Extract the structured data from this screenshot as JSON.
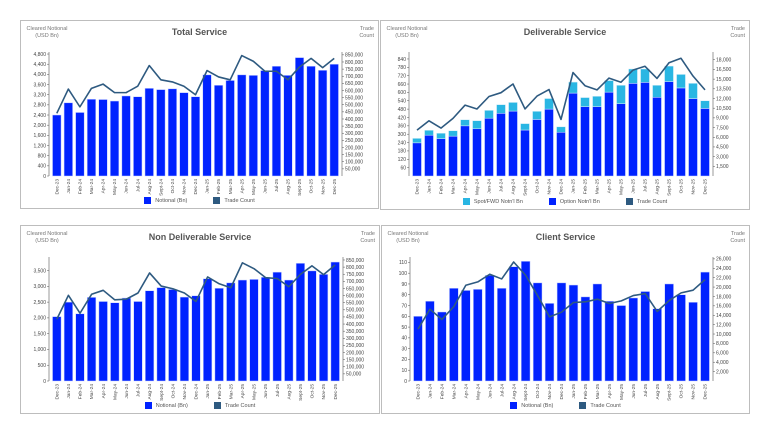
{
  "months": [
    "Dec-23",
    "Jan-24",
    "Feb-24",
    "Mar-24",
    "Apr-24",
    "May-24",
    "Jun-24",
    "Jul-24",
    "Aug-24",
    "Sept-24",
    "Oct-24",
    "Nov-24",
    "Dec-24",
    "Jan-25",
    "Feb-25",
    "Mar-25",
    "Apr-25",
    "May-25",
    "Jun-25",
    "Jul-25",
    "Aug-25",
    "Sept-25",
    "Oct-25",
    "Nov-25",
    "Dec-25"
  ],
  "colors": {
    "bar": "#0022ff",
    "spot": "#29b6e3",
    "line": "#2e5a80"
  },
  "chart_data": [
    {
      "type": "bar+line",
      "title": "Total Service",
      "ylabel": "Cleared Notional (USD Bn)",
      "y2label": "Trade Count",
      "ylim": [
        0,
        4880
      ],
      "y2lim": [
        0,
        870000
      ],
      "yticks": [
        "0",
        "400",
        "800",
        "1,200",
        "1,600",
        "2,000",
        "2,400",
        "2,800",
        "3,200",
        "3,600",
        "4,000",
        "4,400",
        "4,800"
      ],
      "yticks_values": [
        0,
        400,
        800,
        1200,
        1600,
        2000,
        2400,
        2800,
        3200,
        3600,
        4000,
        4400,
        4800
      ],
      "y2ticks_values": [
        50000,
        100000,
        150000,
        200000,
        250000,
        300000,
        350000,
        400000,
        450000,
        500000,
        550000,
        600000,
        650000,
        700000,
        750000,
        800000,
        850000
      ],
      "y2ticks": [
        "50,000",
        "100,000",
        "150,000",
        "200,000",
        "250,000",
        "300,000",
        "350,000",
        "400,000",
        "450,000",
        "500,000",
        "550,000",
        "600,000",
        "650,000",
        "700,000",
        "750,000",
        "800,000",
        "850,000"
      ],
      "series": [
        {
          "name": "Notional (Bn)",
          "kind": "bar",
          "values": [
            2400,
            2880,
            2500,
            3020,
            3010,
            2950,
            3150,
            3120,
            3450,
            3400,
            3430,
            3280,
            3120,
            3980,
            3570,
            3760,
            3980,
            3960,
            4150,
            4320,
            3960,
            4660,
            4320,
            4160,
            4400
          ]
        },
        {
          "name": "Trade Count",
          "kind": "line",
          "values": [
            440000,
            610000,
            485000,
            615000,
            645000,
            585000,
            585000,
            630000,
            775000,
            675000,
            660000,
            630000,
            570000,
            740000,
            695000,
            675000,
            845000,
            805000,
            735000,
            735000,
            675000,
            765000,
            825000,
            760000,
            825000
          ]
        }
      ]
    },
    {
      "type": "stacked-bar+line",
      "title": "Deliverable Service",
      "ylabel": "Cleared Notional (USD Bn)",
      "y2label": "Trade Count",
      "ylim": [
        0,
        890
      ],
      "y2lim": [
        0,
        19200
      ],
      "yticks": [
        "60",
        "120",
        "180",
        "240",
        "300",
        "360",
        "420",
        "480",
        "540",
        "600",
        "660",
        "720",
        "780",
        "840"
      ],
      "yticks_values": [
        60,
        120,
        180,
        240,
        300,
        360,
        420,
        480,
        540,
        600,
        660,
        720,
        780,
        840
      ],
      "y2ticks": [
        "1,500",
        "3,000",
        "4,500",
        "6,000",
        "7,500",
        "9,000",
        "10,500",
        "12,000",
        "13,500",
        "15,000",
        "16,500",
        "18,000"
      ],
      "y2ticks_values": [
        1500,
        3000,
        4500,
        6000,
        7500,
        9000,
        10500,
        12000,
        13500,
        15000,
        16500,
        18000
      ],
      "series": [
        {
          "name": "Spot/FWD Notn'l Bn",
          "kind": "stack",
          "values": [
            32,
            35,
            39,
            39,
            44,
            58,
            56,
            62,
            62,
            46,
            58,
            76,
            39,
            79,
            65,
            74,
            83,
            132,
            103,
            96,
            86,
            111,
            97,
            109,
            55
          ]
        },
        {
          "name": "Option Notn'l Bn",
          "kind": "bar",
          "values": [
            238,
            293,
            268,
            286,
            360,
            339,
            415,
            450,
            466,
            330,
            406,
            480,
            314,
            595,
            498,
            498,
            602,
            519,
            665,
            672,
            565,
            678,
            632,
            556,
            485
          ]
        },
        {
          "name": "Trade Count",
          "kind": "line",
          "values": [
            7100,
            8550,
            7420,
            8920,
            10970,
            10380,
            12310,
            12900,
            14250,
            10380,
            12370,
            13390,
            8760,
            16020,
            13980,
            13330,
            15160,
            14520,
            16400,
            16990,
            15110,
            17530,
            18230,
            15480,
            13330
          ]
        }
      ]
    },
    {
      "type": "bar+line",
      "title": "Non Deliverable Service",
      "ylabel": "Cleared Notional (USD Bn)",
      "y2label": "Trade Count",
      "ylim": [
        0,
        3930
      ],
      "y2lim": [
        0,
        871000
      ],
      "yticks": [
        "0",
        "500",
        "1,000",
        "1,500",
        "2,000",
        "2,500",
        "3,000",
        "3,500"
      ],
      "yticks_values": [
        0,
        500,
        1000,
        1500,
        2000,
        2500,
        3000,
        3500
      ],
      "y2ticks_values": [
        50000,
        100000,
        150000,
        200000,
        250000,
        300000,
        350000,
        400000,
        450000,
        500000,
        550000,
        600000,
        650000,
        700000,
        750000,
        800000,
        850000
      ],
      "y2ticks": [
        "50,000",
        "100,000",
        "150,000",
        "200,000",
        "250,000",
        "300,000",
        "350,000",
        "400,000",
        "450,000",
        "500,000",
        "550,000",
        "600,000",
        "650,000",
        "700,000",
        "750,000",
        "800,000",
        "850,000"
      ],
      "series": [
        {
          "name": "Notional (Bn)",
          "kind": "bar",
          "values": [
            2040,
            2500,
            2130,
            2650,
            2520,
            2480,
            2630,
            2520,
            2860,
            2960,
            2900,
            2660,
            2700,
            3240,
            2940,
            3110,
            3200,
            3220,
            3290,
            3450,
            3200,
            3730,
            3490,
            3380,
            3770
          ]
        },
        {
          "name": "Trade Count",
          "kind": "line",
          "values": [
            434000,
            602000,
            476000,
            609000,
            637000,
            570000,
            575000,
            618000,
            759000,
            667000,
            648000,
            618000,
            559000,
            731000,
            683000,
            655000,
            830000,
            789000,
            726000,
            720000,
            662000,
            749000,
            809000,
            747000,
            816000
          ]
        }
      ]
    },
    {
      "type": "bar+line",
      "title": "Client Service",
      "ylabel": "Cleared Notional (USD Bn)",
      "y2label": "Trade Count",
      "ylim": [
        0,
        115
      ],
      "y2lim": [
        0,
        26400
      ],
      "yticks": [
        "0",
        "10",
        "20",
        "30",
        "40",
        "50",
        "60",
        "70",
        "80",
        "90",
        "100",
        "110"
      ],
      "yticks_values": [
        0,
        10,
        20,
        30,
        40,
        50,
        60,
        70,
        80,
        90,
        100,
        110
      ],
      "y2ticks": [
        "2,000",
        "4,000",
        "6,000",
        "8,000",
        "10,000",
        "12,000",
        "14,000",
        "16,000",
        "18,000",
        "20,000",
        "22,000",
        "24,000",
        "26,000"
      ],
      "y2ticks_values": [
        2000,
        4000,
        6000,
        8000,
        10000,
        12000,
        14000,
        16000,
        18000,
        20000,
        22000,
        24000,
        26000
      ],
      "series": [
        {
          "name": "Notional (Bn)",
          "kind": "bar",
          "values": [
            60,
            74,
            64,
            86,
            84,
            85,
            98,
            86,
            106,
            111,
            91,
            72,
            91,
            89,
            78,
            90,
            74,
            70,
            77,
            83,
            67,
            90,
            80,
            73,
            101
          ]
        },
        {
          "name": "Trade Count",
          "kind": "line",
          "values": [
            11040,
            15290,
            13100,
            15860,
            20390,
            21100,
            22730,
            21730,
            25340,
            22510,
            18190,
            13660,
            14650,
            16710,
            16850,
            17420,
            16500,
            17060,
            18190,
            18620,
            14800,
            17130,
            18760,
            19330,
            21590
          ]
        }
      ]
    }
  ]
}
